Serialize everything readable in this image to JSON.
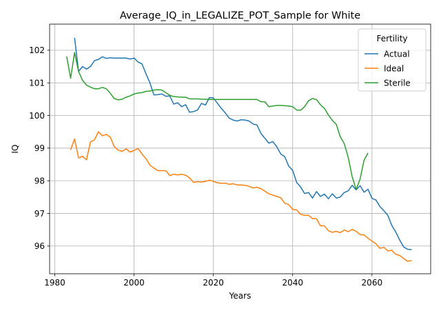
{
  "chart_data": {
    "type": "line",
    "title": "Average_IQ_in_LEGALIZE_POT_Sample for White",
    "xlabel": "Years",
    "ylabel": "IQ",
    "xlim": [
      1978.7,
      2074.8
    ],
    "ylim": [
      95.15,
      102.8
    ],
    "xticks": [
      1980,
      2000,
      2020,
      2040,
      2060
    ],
    "yticks": [
      96,
      97,
      98,
      99,
      100,
      101,
      102
    ],
    "grid": true,
    "legend": {
      "title": "Fertility",
      "placement": "top-right"
    },
    "series": [
      {
        "name": "Actual",
        "color": "#1f77b4",
        "x": [
          1985,
          1986,
          1987,
          1988,
          1989,
          1990,
          1991,
          1992,
          1993,
          1994,
          1995,
          1996,
          1997,
          1998,
          1999,
          2000,
          2001,
          2002,
          2003,
          2004,
          2005,
          2006,
          2007,
          2008,
          2009,
          2010,
          2011,
          2012,
          2013,
          2014,
          2015,
          2016,
          2017,
          2018,
          2019,
          2020,
          2021,
          2022,
          2023,
          2024,
          2025,
          2026,
          2027,
          2028,
          2029,
          2030,
          2031,
          2032,
          2033,
          2034,
          2035,
          2036,
          2037,
          2038,
          2039,
          2040,
          2041,
          2042,
          2043,
          2044,
          2045,
          2046,
          2047,
          2048,
          2049,
          2050,
          2051,
          2052,
          2053,
          2054,
          2055,
          2056,
          2057,
          2058,
          2059,
          2060,
          2061,
          2062,
          2063,
          2064,
          2065,
          2066,
          2067,
          2068,
          2069,
          2070
        ],
        "y": [
          102.38,
          101.35,
          101.5,
          101.42,
          101.5,
          101.68,
          101.72,
          101.8,
          101.75,
          101.77,
          101.76,
          101.76,
          101.76,
          101.76,
          101.73,
          101.76,
          101.64,
          101.58,
          101.28,
          101.0,
          100.63,
          100.64,
          100.66,
          100.59,
          100.6,
          100.35,
          100.39,
          100.27,
          100.33,
          100.1,
          100.12,
          100.17,
          100.37,
          100.32,
          100.55,
          100.54,
          100.38,
          100.22,
          100.08,
          99.92,
          99.86,
          99.83,
          99.87,
          99.86,
          99.83,
          99.74,
          99.71,
          99.45,
          99.3,
          99.15,
          99.2,
          99.04,
          98.82,
          98.74,
          98.45,
          98.32,
          97.95,
          97.81,
          97.61,
          97.64,
          97.47,
          97.67,
          97.52,
          97.59,
          97.45,
          97.6,
          97.47,
          97.5,
          97.64,
          97.69,
          97.86,
          97.72,
          97.85,
          97.65,
          97.74,
          97.46,
          97.41,
          97.21,
          97.08,
          96.94,
          96.63,
          96.43,
          96.18,
          95.97,
          95.9,
          95.89
        ]
      },
      {
        "name": "Ideal",
        "color": "#ff7f0e",
        "x": [
          1984,
          1985,
          1986,
          1987,
          1988,
          1989,
          1990,
          1991,
          1992,
          1993,
          1994,
          1995,
          1996,
          1997,
          1998,
          1999,
          2000,
          2001,
          2002,
          2003,
          2004,
          2005,
          2006,
          2007,
          2008,
          2009,
          2010,
          2011,
          2012,
          2013,
          2014,
          2015,
          2016,
          2017,
          2018,
          2019,
          2020,
          2021,
          2022,
          2023,
          2024,
          2025,
          2026,
          2027,
          2028,
          2029,
          2030,
          2031,
          2032,
          2033,
          2034,
          2035,
          2036,
          2037,
          2038,
          2039,
          2040,
          2041,
          2042,
          2043,
          2044,
          2045,
          2046,
          2047,
          2048,
          2049,
          2050,
          2051,
          2052,
          2053,
          2054,
          2055,
          2056,
          2057,
          2058,
          2059,
          2060,
          2061,
          2062,
          2063,
          2064,
          2065,
          2066,
          2067,
          2068,
          2069,
          2070
        ],
        "y": [
          98.95,
          99.28,
          98.7,
          98.75,
          98.64,
          99.19,
          99.25,
          99.5,
          99.38,
          99.42,
          99.34,
          99.05,
          98.94,
          98.9,
          98.98,
          98.88,
          98.93,
          98.99,
          98.82,
          98.68,
          98.48,
          98.39,
          98.31,
          98.31,
          98.31,
          98.16,
          98.2,
          98.18,
          98.2,
          98.17,
          98.09,
          97.95,
          97.97,
          97.96,
          97.98,
          98.02,
          97.98,
          97.94,
          97.92,
          97.93,
          97.89,
          97.91,
          97.87,
          97.87,
          97.86,
          97.83,
          97.78,
          97.8,
          97.76,
          97.68,
          97.6,
          97.56,
          97.52,
          97.48,
          97.31,
          97.27,
          97.12,
          97.11,
          96.97,
          96.94,
          96.94,
          96.84,
          96.84,
          96.62,
          96.62,
          96.47,
          96.42,
          96.45,
          96.41,
          96.49,
          96.44,
          96.51,
          96.45,
          96.35,
          96.34,
          96.24,
          96.15,
          96.07,
          95.93,
          95.96,
          95.85,
          95.87,
          95.75,
          95.71,
          95.62,
          95.53,
          95.56
        ]
      },
      {
        "name": "Sterile",
        "color": "#2ca02c",
        "x": [
          1983,
          1984,
          1985,
          1986,
          1987,
          1988,
          1989,
          1990,
          1991,
          1992,
          1993,
          1994,
          1995,
          1996,
          1997,
          1998,
          1999,
          2000,
          2001,
          2002,
          2003,
          2004,
          2005,
          2006,
          2007,
          2008,
          2009,
          2010,
          2011,
          2012,
          2013,
          2014,
          2015,
          2016,
          2017,
          2018,
          2019,
          2020,
          2021,
          2022,
          2023,
          2024,
          2025,
          2026,
          2027,
          2028,
          2029,
          2030,
          2031,
          2032,
          2033,
          2034,
          2035,
          2036,
          2037,
          2038,
          2039,
          2040,
          2041,
          2042,
          2043,
          2044,
          2045,
          2046,
          2047,
          2048,
          2049,
          2050,
          2051,
          2052,
          2053,
          2054,
          2055,
          2056,
          2057,
          2058,
          2059
        ],
        "y": [
          101.81,
          101.14,
          101.93,
          101.35,
          101.08,
          100.93,
          100.87,
          100.82,
          100.82,
          100.86,
          100.82,
          100.68,
          100.52,
          100.48,
          100.5,
          100.56,
          100.6,
          100.66,
          100.69,
          100.7,
          100.74,
          100.75,
          100.78,
          100.79,
          100.78,
          100.7,
          100.62,
          100.58,
          100.57,
          100.56,
          100.56,
          100.51,
          100.51,
          100.51,
          100.5,
          100.5,
          100.49,
          100.49,
          100.49,
          100.49,
          100.49,
          100.49,
          100.49,
          100.49,
          100.49,
          100.49,
          100.49,
          100.49,
          100.49,
          100.42,
          100.42,
          100.27,
          100.29,
          100.31,
          100.31,
          100.3,
          100.29,
          100.27,
          100.17,
          100.16,
          100.27,
          100.45,
          100.52,
          100.49,
          100.33,
          100.22,
          100.02,
          99.85,
          99.73,
          99.35,
          99.14,
          98.72,
          98.13,
          97.73,
          98.05,
          98.63,
          98.85
        ]
      }
    ]
  }
}
